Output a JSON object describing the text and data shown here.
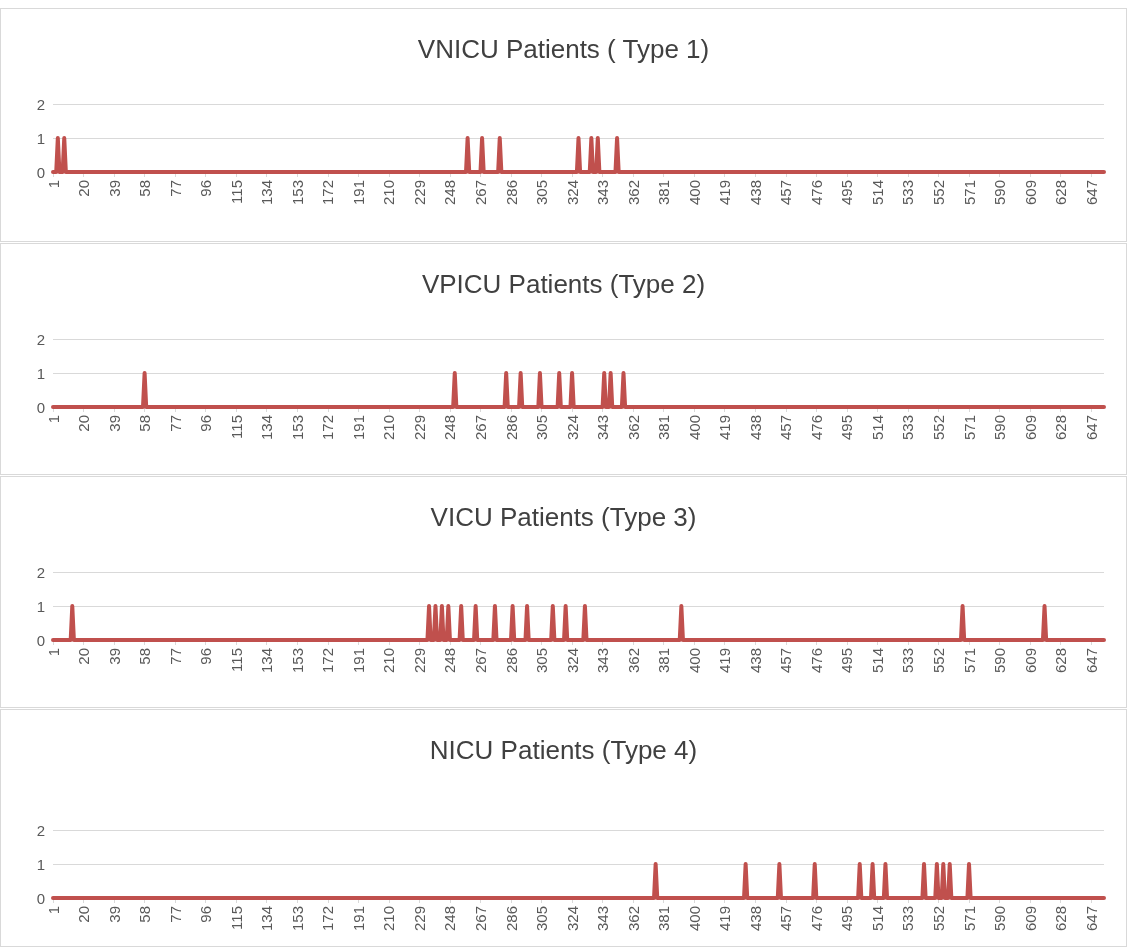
{
  "chart_data": [
    {
      "type": "line",
      "title": "VNICU Patients ( Type 1)",
      "color": "#c0504d",
      "marker": "none",
      "line_style": "solid",
      "grid": "y",
      "xlim": [
        1,
        655
      ],
      "xticks": [
        1,
        20,
        39,
        58,
        77,
        96,
        115,
        134,
        153,
        172,
        191,
        210,
        229,
        248,
        267,
        286,
        305,
        324,
        343,
        362,
        381,
        400,
        419,
        438,
        457,
        476,
        495,
        514,
        533,
        552,
        571,
        590,
        609,
        628,
        647
      ],
      "ylim": [
        0,
        2
      ],
      "yticks": [
        0,
        1,
        2
      ],
      "x": [
        1,
        3,
        4,
        5,
        7,
        8,
        9,
        258,
        259,
        260,
        267,
        268,
        269,
        278,
        279,
        280,
        327,
        328,
        329,
        335,
        336,
        337,
        339,
        340,
        341,
        351,
        352,
        353,
        655
      ],
      "values": [
        0,
        0,
        1,
        0,
        0,
        1,
        0,
        0,
        1,
        0,
        0,
        1,
        0,
        0,
        1,
        0,
        0,
        1,
        0,
        0,
        1,
        0,
        0,
        1,
        0,
        0,
        1,
        0,
        0
      ]
    },
    {
      "type": "line",
      "title": "VPICU Patients (Type 2)",
      "color": "#c0504d",
      "marker": "none",
      "line_style": "solid",
      "grid": "y",
      "xlim": [
        1,
        655
      ],
      "xticks": [
        1,
        20,
        39,
        58,
        77,
        96,
        115,
        134,
        153,
        172,
        191,
        210,
        229,
        248,
        267,
        286,
        305,
        324,
        343,
        362,
        381,
        400,
        419,
        438,
        457,
        476,
        495,
        514,
        533,
        552,
        571,
        590,
        609,
        628,
        647
      ],
      "ylim": [
        0,
        2
      ],
      "yticks": [
        0,
        1,
        2
      ],
      "x": [
        1,
        57,
        58,
        59,
        250,
        251,
        252,
        282,
        283,
        284,
        291,
        292,
        293,
        303,
        304,
        305,
        315,
        316,
        317,
        323,
        324,
        325,
        343,
        344,
        345,
        347,
        348,
        349,
        355,
        356,
        357,
        655
      ],
      "values": [
        0,
        0,
        1,
        0,
        0,
        1,
        0,
        0,
        1,
        0,
        0,
        1,
        0,
        0,
        1,
        0,
        0,
        1,
        0,
        0,
        1,
        0,
        0,
        1,
        0,
        0,
        1,
        0,
        0,
        1,
        0,
        0
      ]
    },
    {
      "type": "line",
      "title": "VICU Patients (Type 3)",
      "color": "#c0504d",
      "marker": "none",
      "line_style": "solid",
      "grid": "y",
      "xlim": [
        1,
        655
      ],
      "xticks": [
        1,
        20,
        39,
        58,
        77,
        96,
        115,
        134,
        153,
        172,
        191,
        210,
        229,
        248,
        267,
        286,
        305,
        324,
        343,
        362,
        381,
        400,
        419,
        438,
        457,
        476,
        495,
        514,
        533,
        552,
        571,
        590,
        609,
        628,
        647
      ],
      "ylim": [
        0,
        2
      ],
      "yticks": [
        0,
        1,
        2
      ],
      "x": [
        1,
        12,
        13,
        14,
        234,
        235,
        236,
        238,
        239,
        240,
        242,
        243,
        244,
        246,
        247,
        248,
        254,
        255,
        256,
        263,
        264,
        265,
        275,
        276,
        277,
        286,
        287,
        288,
        295,
        296,
        297,
        311,
        312,
        313,
        319,
        320,
        321,
        331,
        332,
        333,
        391,
        392,
        393,
        566,
        567,
        568,
        617,
        618,
        619,
        655
      ],
      "values": [
        0,
        0,
        1,
        0,
        0,
        1,
        0,
        0,
        1,
        0,
        0,
        1,
        0,
        0,
        1,
        0,
        0,
        1,
        0,
        0,
        1,
        0,
        0,
        1,
        0,
        0,
        1,
        0,
        0,
        1,
        0,
        0,
        1,
        0,
        0,
        1,
        0,
        0,
        1,
        0,
        0,
        1,
        0,
        0,
        1,
        0,
        0,
        1,
        0,
        0
      ]
    },
    {
      "type": "line",
      "title": "NICU Patients (Type 4)",
      "color": "#c0504d",
      "marker": "none",
      "line_style": "solid",
      "grid": "y",
      "xlim": [
        1,
        655
      ],
      "xticks": [
        1,
        20,
        39,
        58,
        77,
        96,
        115,
        134,
        153,
        172,
        191,
        210,
        229,
        248,
        267,
        286,
        305,
        324,
        343,
        362,
        381,
        400,
        419,
        438,
        457,
        476,
        495,
        514,
        533,
        552,
        571,
        590,
        609,
        628,
        647
      ],
      "ylim": [
        0,
        2
      ],
      "yticks": [
        0,
        1,
        2
      ],
      "x": [
        1,
        375,
        376,
        377,
        431,
        432,
        433,
        452,
        453,
        454,
        474,
        475,
        476,
        502,
        503,
        504,
        510,
        511,
        512,
        518,
        519,
        520,
        542,
        543,
        544,
        550,
        551,
        552,
        554,
        555,
        556,
        558,
        559,
        560,
        570,
        571,
        572,
        655
      ],
      "values": [
        0,
        0,
        1,
        0,
        0,
        1,
        0,
        0,
        1,
        0,
        0,
        1,
        0,
        0,
        1,
        0,
        0,
        1,
        0,
        0,
        1,
        0,
        0,
        1,
        0,
        0,
        1,
        0,
        0,
        1,
        0,
        0,
        1,
        0,
        0,
        1,
        0,
        0
      ]
    }
  ]
}
